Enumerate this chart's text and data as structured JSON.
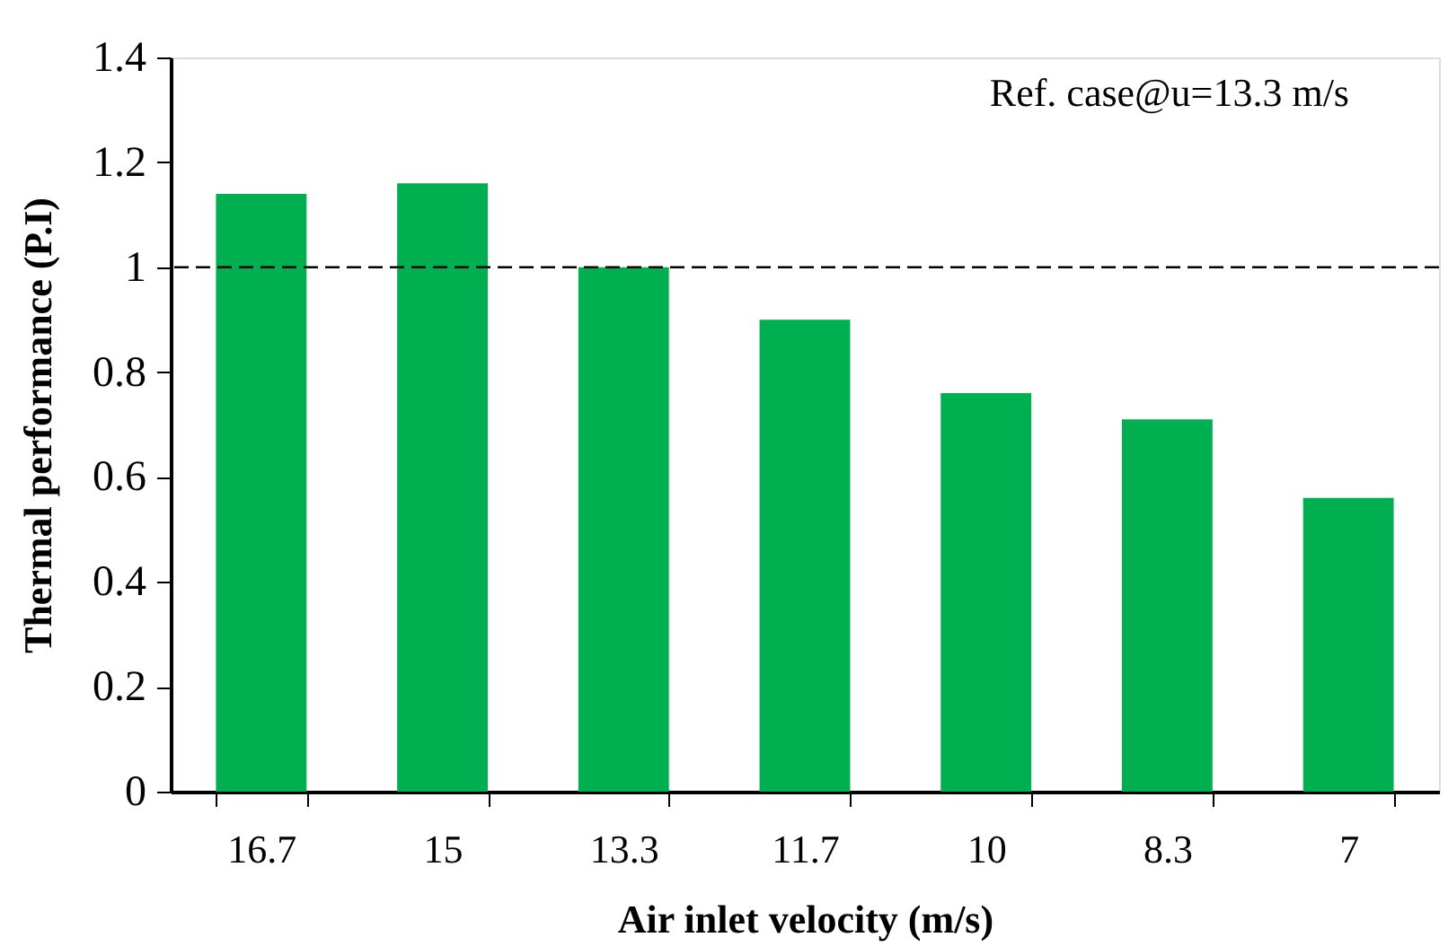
{
  "chart_data": {
    "type": "bar",
    "xlabel": "Air inlet velocity (m/s)",
    "ylabel": "Thermal performance (P.I)",
    "categories": [
      "16.7",
      "15",
      "13.3",
      "11.7",
      "10",
      "8.3",
      "7"
    ],
    "values": [
      1.14,
      1.16,
      1.0,
      0.9,
      0.76,
      0.71,
      0.56
    ],
    "color": "#00b050",
    "ylim": [
      0,
      1.4
    ],
    "yticks": [
      0,
      0.2,
      0.4,
      0.6,
      0.8,
      1,
      1.2,
      1.4
    ],
    "grid": false,
    "ref_lines": [
      {
        "axis": "y",
        "value": 1,
        "color": "#000000",
        "line_style": "dashed"
      }
    ],
    "annotations": [
      "Ref. case@u=13.3 m/s"
    ]
  }
}
